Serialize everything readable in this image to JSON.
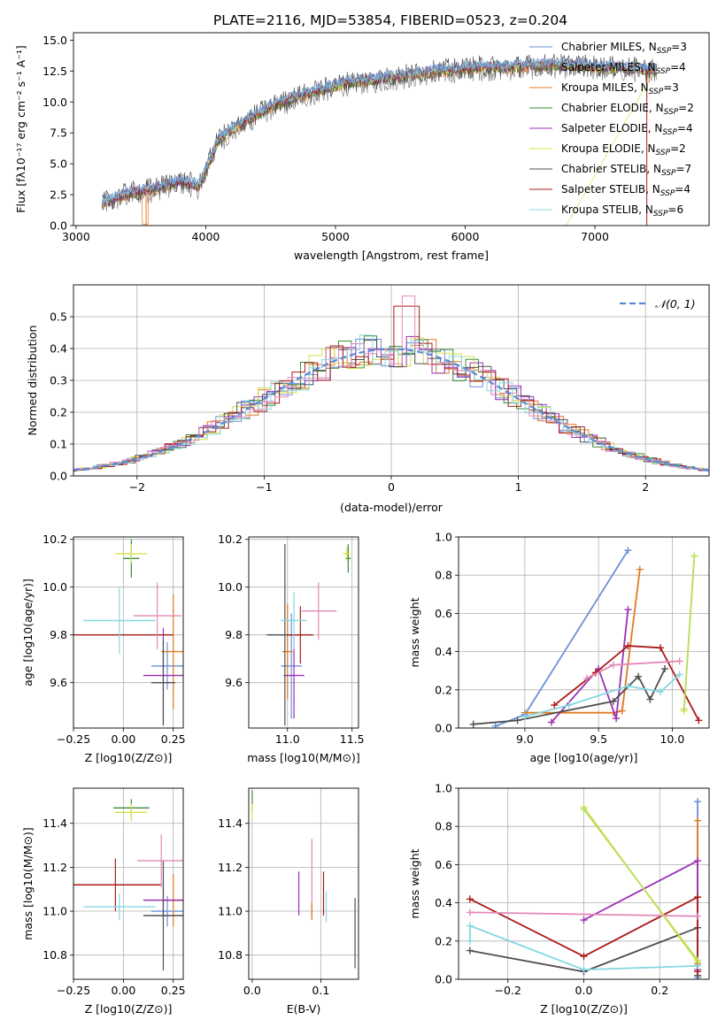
{
  "title": "PLATE=2116, MJD=53854, FIBERID=0523, z=0.204",
  "colors": {
    "Chabrier MILES": "#6a90d8",
    "Salpeter MILES": "#8a8a8a",
    "Kroupa MILES": "#e07b20",
    "Chabrier ELODIE": "#3a8a3a",
    "Salpeter ELODIE": "#9b30b5",
    "Kroupa ELODIE": "#d6e04a",
    "Chabrier STELIB": "#505050",
    "Salpeter STELIB": "#aa1c1c",
    "Kroupa STELIB": "#86d8e0",
    "pink": "#e588b8",
    "yellowgreen": "#b8e060"
  },
  "chart_data": [
    {
      "type": "line",
      "panel": "spectrum",
      "xlabel": "wavelength [Angstrom, rest frame]",
      "ylabel": "Flux [f_λ 10^-17 erg cm^-2 s^-1 A^-1]",
      "xlim": [
        2980,
        7880
      ],
      "ylim": [
        0,
        15.6
      ],
      "xticks": [
        3000,
        4000,
        5000,
        6000,
        7000
      ],
      "yticks": [
        0.0,
        2.5,
        5.0,
        7.5,
        10.0,
        12.5,
        15.0
      ],
      "ytick_labels": [
        "0.0",
        "2.5",
        "5.0",
        "7.5",
        "10.0",
        "12.5",
        "15.0"
      ],
      "continuum": {
        "x": [
          3200,
          3400,
          3600,
          3800,
          3950,
          4100,
          4300,
          4500,
          4700,
          4900,
          5100,
          5300,
          5500,
          5700,
          5900,
          6100,
          6300,
          6500,
          6700,
          6900,
          7100,
          7300,
          7500
        ],
        "y": [
          1.8,
          2.6,
          3.0,
          3.6,
          3.2,
          7.0,
          8.4,
          9.6,
          10.4,
          11.0,
          11.6,
          11.8,
          12.1,
          12.4,
          12.6,
          12.8,
          12.8,
          12.9,
          13.0,
          12.9,
          12.8,
          12.7,
          12.6
        ]
      },
      "legend": {
        "placement": "right",
        "entries": [
          {
            "name": "Chabrier MILES, N_SSP=3",
            "color": "#6a90d8"
          },
          {
            "name": "Salpeter MILES, N_SSP=4",
            "color": "#8a8a8a"
          },
          {
            "name": "Kroupa MILES, N_SSP=3",
            "color": "#e07b20"
          },
          {
            "name": "Chabrier ELODIE, N_SSP=2",
            "color": "#3a8a3a"
          },
          {
            "name": "Salpeter ELODIE, N_SSP=4",
            "color": "#9b30b5"
          },
          {
            "name": "Kroupa ELODIE, N_SSP=2",
            "color": "#d6e04a"
          },
          {
            "name": "Chabrier STELIB, N_SSP=7",
            "color": "#505050"
          },
          {
            "name": "Salpeter STELIB, N_SSP=4",
            "color": "#aa1c1c"
          },
          {
            "name": "Kroupa STELIB, N_SSP=6",
            "color": "#86d8e0"
          }
        ]
      }
    },
    {
      "type": "line",
      "panel": "residuals",
      "xlabel": "(data-model)/error",
      "ylabel": "Normed distribution",
      "xlim": [
        -2.5,
        2.5
      ],
      "ylim": [
        0,
        0.6
      ],
      "xticks": [
        -2,
        -1,
        0,
        1,
        2
      ],
      "xtick_labels": [
        "−2",
        "−1",
        "0",
        "1",
        "2"
      ],
      "yticks": [
        0.0,
        0.1,
        0.2,
        0.3,
        0.4,
        0.5
      ],
      "ytick_labels": [
        "0.0",
        "0.1",
        "0.2",
        "0.3",
        "0.4",
        "0.5"
      ],
      "grid": true,
      "legend": {
        "placement": "top-right",
        "entries": [
          {
            "name": "𝒩(0, 1)",
            "color": "#5a8ad6"
          }
        ]
      }
    },
    {
      "type": "scatter",
      "panel": "age-vs-Z",
      "xlabel": "Z [log10(Z/Z⊙)]",
      "ylabel": "age [log10(age/yr)]",
      "xlim": [
        -0.25,
        0.3
      ],
      "ylim": [
        9.41,
        10.21
      ],
      "xticks": [
        -0.25,
        0.0,
        0.25
      ],
      "xtick_labels": [
        "−0.25",
        "0.00",
        "0.25"
      ],
      "yticks": [
        9.6,
        9.8,
        10.0,
        10.2
      ],
      "ytick_labels": [
        "9.6",
        "9.8",
        "10.0",
        "10.2"
      ],
      "grid": true,
      "points": [
        {
          "color": "#6a90d8",
          "x": 0.22,
          "xerr": 0.08,
          "y": 9.67,
          "yerr": 0.1
        },
        {
          "color": "#e07b20",
          "x": 0.25,
          "xerr": 0.06,
          "y": 9.73,
          "yerr": 0.24
        },
        {
          "color": "#3a8a3a",
          "x": 0.04,
          "xerr": 0.04,
          "y": 10.12,
          "yerr": 0.08
        },
        {
          "color": "#9b30b5",
          "x": 0.2,
          "xerr": 0.1,
          "y": 9.63,
          "yerr": 0.2
        },
        {
          "color": "#d6e04a",
          "x": 0.04,
          "xerr": 0.08,
          "y": 10.14,
          "yerr": 0.04
        },
        {
          "color": "#505050",
          "x": 0.2,
          "xerr": 0.06,
          "y": 9.6,
          "yerr": 0.18
        },
        {
          "color": "#aa1c1c",
          "x": 0.0,
          "xerr": 0.25,
          "y": 9.8,
          "yerr": 0.0
        },
        {
          "color": "#86d8e0",
          "x": -0.02,
          "xerr": 0.18,
          "y": 9.86,
          "yerr": 0.14
        },
        {
          "color": "#e588b8",
          "x": 0.17,
          "xerr": 0.12,
          "y": 9.88,
          "yerr": 0.14
        }
      ]
    },
    {
      "type": "scatter",
      "panel": "age-vs-mass",
      "xlabel": "mass [log10(M/M⊙)]",
      "xlim": [
        10.7,
        11.55
      ],
      "ylim": [
        9.41,
        10.21
      ],
      "xticks": [
        11.0,
        11.5
      ],
      "xtick_labels": [
        "11.0",
        "11.5"
      ],
      "yticks": [
        9.6,
        9.8,
        10.0,
        10.2
      ],
      "ytick_labels": [
        "9.6",
        "9.8",
        "10.0",
        "10.2"
      ],
      "grid": true,
      "points": [
        {
          "color": "#6a90d8",
          "x": 11.03,
          "xerr": 0.08,
          "y": 9.67,
          "yerr": 0.22
        },
        {
          "color": "#e07b20",
          "x": 11.0,
          "xerr": 0.04,
          "y": 9.73,
          "yerr": 0.2
        },
        {
          "color": "#3a8a3a",
          "x": 11.47,
          "xerr": 0.02,
          "y": 10.12,
          "yerr": 0.06
        },
        {
          "color": "#9b30b5",
          "x": 11.05,
          "xerr": 0.08,
          "y": 9.63,
          "yerr": 0.18
        },
        {
          "color": "#d6e04a",
          "x": 11.46,
          "xerr": 0.03,
          "y": 10.14,
          "yerr": 0.03
        },
        {
          "color": "#505050",
          "x": 10.98,
          "xerr": 0.14,
          "y": 9.8,
          "yerr": 0.38
        },
        {
          "color": "#aa1c1c",
          "x": 11.1,
          "xerr": 0.1,
          "y": 9.8,
          "yerr": 0.12
        },
        {
          "color": "#86d8e0",
          "x": 11.05,
          "xerr": 0.1,
          "y": 9.86,
          "yerr": 0.12
        },
        {
          "color": "#e588b8",
          "x": 11.24,
          "xerr": 0.14,
          "y": 9.9,
          "yerr": 0.12
        }
      ]
    },
    {
      "type": "line",
      "panel": "weight-vs-age",
      "xlabel": "age [log10(age/yr)]",
      "ylabel": "mass weight",
      "xlim": [
        8.55,
        10.25
      ],
      "ylim": [
        0,
        1.0
      ],
      "xticks": [
        9.0,
        9.5,
        10.0
      ],
      "xtick_labels": [
        "9.0",
        "9.5",
        "10.0"
      ],
      "yticks": [
        0.0,
        0.2,
        0.4,
        0.6,
        0.8,
        1.0
      ],
      "ytick_labels": [
        "0.0",
        "0.2",
        "0.4",
        "0.6",
        "0.8",
        "1.0"
      ],
      "grid": true,
      "series": [
        {
          "color": "#6a90d8",
          "x": [
            8.8,
            9.0,
            9.7
          ],
          "y": [
            0.01,
            0.07,
            0.93
          ]
        },
        {
          "color": "#e07b20",
          "x": [
            9.0,
            9.6,
            9.66,
            9.78
          ],
          "y": [
            0.08,
            0.08,
            0.09,
            0.83
          ]
        },
        {
          "color": "#9b30b5",
          "x": [
            9.18,
            9.5,
            9.62,
            9.7
          ],
          "y": [
            0.03,
            0.31,
            0.05,
            0.62
          ]
        },
        {
          "color": "#d6e04a",
          "x": [
            10.08,
            10.15
          ],
          "y": [
            0.09,
            0.9
          ]
        },
        {
          "color": "#505050",
          "x": [
            8.65,
            8.95,
            9.6,
            9.77,
            9.85,
            9.95
          ],
          "y": [
            0.02,
            0.04,
            0.14,
            0.27,
            0.15,
            0.31
          ]
        },
        {
          "color": "#aa1c1c",
          "x": [
            9.2,
            9.48,
            9.7,
            9.92,
            10.18
          ],
          "y": [
            0.12,
            0.29,
            0.43,
            0.42,
            0.04
          ]
        },
        {
          "color": "#86d8e0",
          "x": [
            9.0,
            9.3,
            9.7,
            9.92,
            10.05
          ],
          "y": [
            0.06,
            0.12,
            0.22,
            0.19,
            0.28
          ]
        },
        {
          "color": "#e588b8",
          "x": [
            9.42,
            9.6,
            10.05
          ],
          "y": [
            0.26,
            0.33,
            0.35
          ]
        },
        {
          "color": "#b8e060",
          "x": [
            10.08,
            10.15
          ],
          "y": [
            0.1,
            0.9
          ]
        }
      ]
    },
    {
      "type": "scatter",
      "panel": "mass-vs-Z",
      "xlabel": "Z [log10(Z/Z⊙)]",
      "ylabel": "mass [log10(M/M⊙)]",
      "xlim": [
        -0.25,
        0.3
      ],
      "ylim": [
        10.69,
        11.56
      ],
      "xticks": [
        -0.25,
        0.0,
        0.25
      ],
      "xtick_labels": [
        "−0.25",
        "0.00",
        "0.25"
      ],
      "yticks": [
        10.8,
        11.0,
        11.2,
        11.4
      ],
      "ytick_labels": [
        "10.8",
        "11.0",
        "11.2",
        "11.4"
      ],
      "grid": true,
      "points": [
        {
          "color": "#6a90d8",
          "x": 0.22,
          "xerr": 0.08,
          "y": 11.0,
          "yerr": 0.07
        },
        {
          "color": "#e07b20",
          "x": 0.25,
          "xerr": 0.05,
          "y": 11.05,
          "yerr": 0.12
        },
        {
          "color": "#3a8a3a",
          "x": 0.04,
          "xerr": 0.09,
          "y": 11.47,
          "yerr": 0.04
        },
        {
          "color": "#9b30b5",
          "x": 0.2,
          "xerr": 0.1,
          "y": 11.05,
          "yerr": 0.08
        },
        {
          "color": "#d6e04a",
          "x": 0.04,
          "xerr": 0.08,
          "y": 11.45,
          "yerr": 0.04
        },
        {
          "color": "#505050",
          "x": 0.2,
          "xerr": 0.1,
          "y": 10.98,
          "yerr": 0.25
        },
        {
          "color": "#aa1c1c",
          "x": -0.04,
          "xerr": 0.23,
          "y": 11.12,
          "yerr": 0.12
        },
        {
          "color": "#86d8e0",
          "x": -0.02,
          "xerr": 0.18,
          "y": 11.02,
          "yerr": 0.06
        },
        {
          "color": "#e588b8",
          "x": 0.19,
          "xerr": 0.12,
          "y": 11.23,
          "yerr": 0.12
        }
      ]
    },
    {
      "type": "scatter",
      "panel": "mass-vs-EBV",
      "xlabel": "E(B-V)",
      "xlim": [
        -0.005,
        0.155
      ],
      "ylim": [
        10.69,
        11.56
      ],
      "xticks": [
        0.0,
        0.1
      ],
      "xtick_labels": [
        "0.0",
        "0.1"
      ],
      "yticks": [
        10.8,
        11.0,
        11.2,
        11.4
      ],
      "ytick_labels": [
        "10.8",
        "11.0",
        "11.2",
        "11.4"
      ],
      "grid": true,
      "points": [
        {
          "color": "#3a8a3a",
          "x": 0.0,
          "y": 11.5,
          "yerr": 0.05
        },
        {
          "color": "#d6e04a",
          "x": 0.0,
          "y": 11.45,
          "yerr": 0.04
        },
        {
          "color": "#9b30b5",
          "x": 0.068,
          "y": 11.08,
          "yerr": 0.1
        },
        {
          "color": "#e588b8",
          "x": 0.087,
          "y": 11.15,
          "yerr": 0.18
        },
        {
          "color": "#e07b20",
          "x": 0.087,
          "y": 11.0,
          "yerr": 0.04
        },
        {
          "color": "#aa1c1c",
          "x": 0.104,
          "y": 11.08,
          "yerr": 0.1
        },
        {
          "color": "#86d8e0",
          "x": 0.108,
          "y": 11.02,
          "yerr": 0.07
        },
        {
          "color": "#505050",
          "x": 0.15,
          "y": 10.9,
          "yerr": 0.16
        }
      ]
    },
    {
      "type": "line",
      "panel": "weight-vs-Z",
      "xlabel": "Z [log10(Z/Z⊙)]",
      "ylabel": "mass weight",
      "xlim": [
        -0.33,
        0.33
      ],
      "ylim": [
        0,
        1.0
      ],
      "xticks": [
        -0.2,
        0.0,
        0.2
      ],
      "xtick_labels": [
        "−0.2",
        "0.0",
        "0.2"
      ],
      "yticks": [
        0.0,
        0.2,
        0.4,
        0.6,
        0.8,
        1.0
      ],
      "ytick_labels": [
        "0.0",
        "0.2",
        "0.4",
        "0.6",
        "0.8",
        "1.0"
      ],
      "grid": true,
      "series": [
        {
          "color": "#6a90d8",
          "x": [
            0.3,
            0.3
          ],
          "y": [
            0.01,
            0.93
          ]
        },
        {
          "color": "#e07b20",
          "x": [
            0.3,
            0.3
          ],
          "y": [
            0.08,
            0.83
          ]
        },
        {
          "color": "#9b30b5",
          "x": [
            0.0,
            0.3,
            0.3
          ],
          "y": [
            0.31,
            0.62,
            0.05
          ]
        },
        {
          "color": "#d6e04a",
          "x": [
            0.0,
            0.3
          ],
          "y": [
            0.9,
            0.09
          ]
        },
        {
          "color": "#505050",
          "x": [
            -0.3,
            0.0,
            0.3,
            0.3
          ],
          "y": [
            0.15,
            0.04,
            0.27,
            0.02
          ]
        },
        {
          "color": "#aa1c1c",
          "x": [
            -0.3,
            0.0,
            0.3,
            0.3
          ],
          "y": [
            0.42,
            0.12,
            0.43,
            0.04
          ]
        },
        {
          "color": "#86d8e0",
          "x": [
            -0.3,
            -0.3,
            0.0,
            0.3
          ],
          "y": [
            0.2,
            0.28,
            0.05,
            0.07
          ]
        },
        {
          "color": "#e588b8",
          "x": [
            -0.3,
            0.3
          ],
          "y": [
            0.35,
            0.33
          ]
        },
        {
          "color": "#b8e060",
          "x": [
            0.0,
            0.3
          ],
          "y": [
            0.89,
            0.1
          ]
        }
      ]
    }
  ]
}
